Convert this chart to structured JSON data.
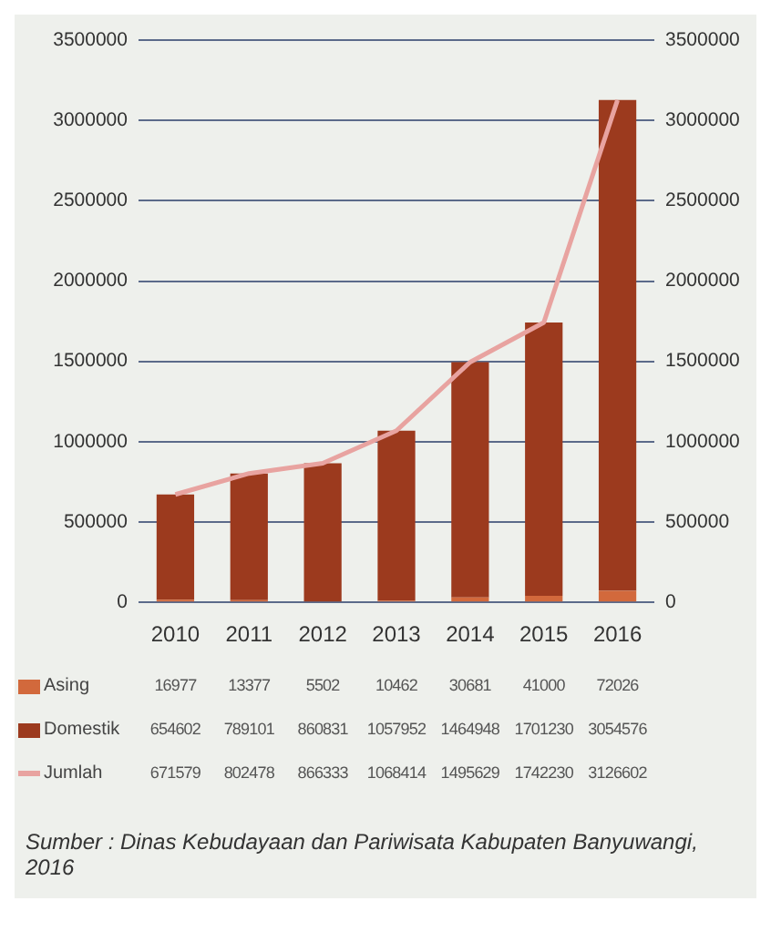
{
  "chart_data": {
    "type": "bar",
    "stacked": true,
    "categories": [
      "2010",
      "2011",
      "2012",
      "2013",
      "2014",
      "2015",
      "2016"
    ],
    "series": [
      {
        "name": "Asing",
        "color": "#d2693c",
        "values": [
          16977,
          13377,
          5502,
          10462,
          30681,
          41000,
          72026
        ]
      },
      {
        "name": "Domestik",
        "color": "#9c3a1e",
        "values": [
          654602,
          789101,
          860831,
          1057952,
          1464948,
          1701230,
          3054576
        ]
      },
      {
        "name": "Jumlah",
        "type": "line",
        "axis": "y2",
        "color": "#e8a3a0",
        "values": [
          671579,
          802478,
          866333,
          1068414,
          1495629,
          1742230,
          3126602
        ]
      }
    ],
    "ylim": [
      0,
      3500000
    ],
    "yticks": [
      0,
      500000,
      1000000,
      1500000,
      2000000,
      2500000,
      3000000,
      3500000
    ],
    "y2lim": [
      0,
      3500000
    ],
    "y2ticks": [
      0,
      500000,
      1000000,
      1500000,
      2000000,
      2500000,
      3000000,
      3500000
    ],
    "grid": "y",
    "legend": "bottom",
    "data_labels": true,
    "marker": "none",
    "annotations": [
      "Sumber : Dinas Kebudayaan dan Pariwisata Kabupaten Banyuwangi, 2016"
    ]
  }
}
